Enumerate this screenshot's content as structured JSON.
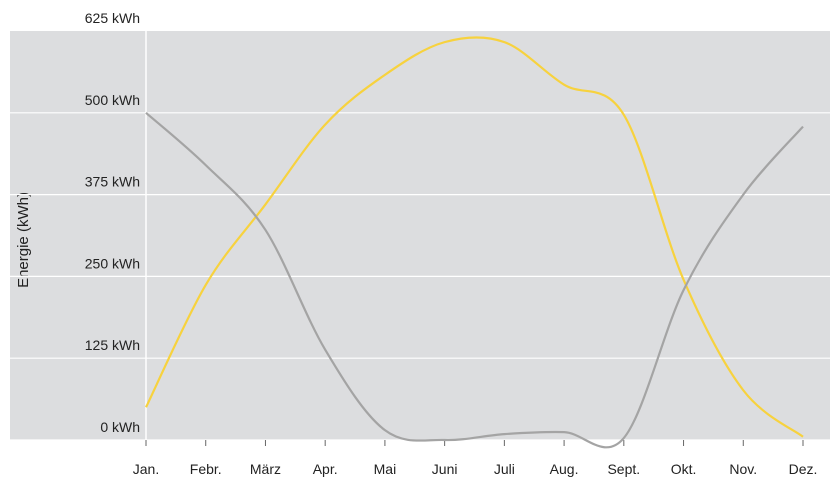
{
  "chart_data": {
    "type": "line",
    "y_label": "Energie (kWh)",
    "categories": [
      "Jan.",
      "Febr.",
      "März",
      "Apr.",
      "Mai",
      "Juni",
      "Juli",
      "Aug.",
      "Sept.",
      "Okt.",
      "Nov.",
      "Dez."
    ],
    "series": [
      {
        "color": "#f7d23e",
        "values": [
          50,
          237,
          360,
          482,
          558,
          608,
          608,
          543,
          497,
          245,
          76,
          5
        ]
      },
      {
        "color": "#a4a4a4",
        "values": [
          500,
          420,
          321,
          138,
          15,
          0,
          9,
          12,
          3,
          229,
          375,
          479
        ]
      }
    ],
    "ylim": [
      0,
      625
    ],
    "yticks": [
      {
        "value": 0,
        "label": "0 kWh"
      },
      {
        "value": 125,
        "label": "125 kWh"
      },
      {
        "value": 250,
        "label": "250 kWh"
      },
      {
        "value": 375,
        "label": "375 kWh"
      },
      {
        "value": 500,
        "label": "500 kWh"
      },
      {
        "value": 625,
        "label": "625 kWh"
      }
    ],
    "grid": true
  }
}
